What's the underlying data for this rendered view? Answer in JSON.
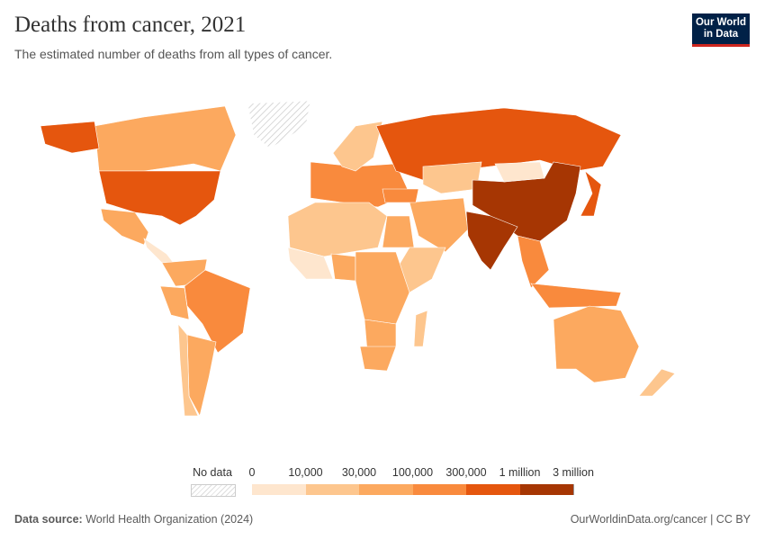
{
  "header": {
    "title": "Deaths from cancer, 2021",
    "subtitle": "The estimated number of deaths from all types of cancer.",
    "logo": "Our World in Data"
  },
  "legend": {
    "no_data_label": "No data",
    "tick_labels": [
      "0",
      "10,000",
      "30,000",
      "100,000",
      "300,000",
      "1 million",
      "3 million"
    ],
    "bins": [
      {
        "range": "0–10,000",
        "color": "#fee6ce"
      },
      {
        "range": "10,000–30,000",
        "color": "#fdc68e"
      },
      {
        "range": "30,000–100,000",
        "color": "#fca95f"
      },
      {
        "range": "100,000–300,000",
        "color": "#f98a3d"
      },
      {
        "range": "300,000–1 million",
        "color": "#e5560e"
      },
      {
        "range": "1 million–3 million",
        "color": "#a63603"
      }
    ],
    "no_data_color": "#eeeeee"
  },
  "map_regions": [
    {
      "region": "Canada",
      "bin": 2
    },
    {
      "region": "United States",
      "bin": 4
    },
    {
      "region": "Alaska",
      "bin": 4
    },
    {
      "region": "Greenland",
      "bin": null
    },
    {
      "region": "Mexico",
      "bin": 2
    },
    {
      "region": "Central America",
      "bin": 0
    },
    {
      "region": "Colombia/Venezuela",
      "bin": 2
    },
    {
      "region": "Peru",
      "bin": 2
    },
    {
      "region": "Brazil",
      "bin": 3
    },
    {
      "region": "Argentina",
      "bin": 2
    },
    {
      "region": "Chile",
      "bin": 1
    },
    {
      "region": "Western Europe",
      "bin": 3
    },
    {
      "region": "Scandinavia",
      "bin": 1
    },
    {
      "region": "Russia",
      "bin": 4
    },
    {
      "region": "Kazakhstan",
      "bin": 1
    },
    {
      "region": "Middle East",
      "bin": 2
    },
    {
      "region": "Turkey",
      "bin": 3
    },
    {
      "region": "North Africa",
      "bin": 1
    },
    {
      "region": "Egypt",
      "bin": 2
    },
    {
      "region": "West Africa",
      "bin": 0
    },
    {
      "region": "Nigeria",
      "bin": 2
    },
    {
      "region": "East Africa",
      "bin": 1
    },
    {
      "region": "Central Africa",
      "bin": 2
    },
    {
      "region": "Southern Africa",
      "bin": 2
    },
    {
      "region": "South Africa",
      "bin": 2
    },
    {
      "region": "Madagascar",
      "bin": 1
    },
    {
      "region": "China",
      "bin": 5
    },
    {
      "region": "India",
      "bin": 5
    },
    {
      "region": "Mongolia",
      "bin": 0
    },
    {
      "region": "Japan",
      "bin": 4
    },
    {
      "region": "Southeast Asia",
      "bin": 3
    },
    {
      "region": "Indonesia",
      "bin": 3
    },
    {
      "region": "Australia",
      "bin": 2
    },
    {
      "region": "New Zealand",
      "bin": 1
    }
  ],
  "footer": {
    "source_label": "Data source:",
    "source": "World Health Organization (2024)",
    "link": "OurWorldinData.org/cancer | CC BY"
  }
}
